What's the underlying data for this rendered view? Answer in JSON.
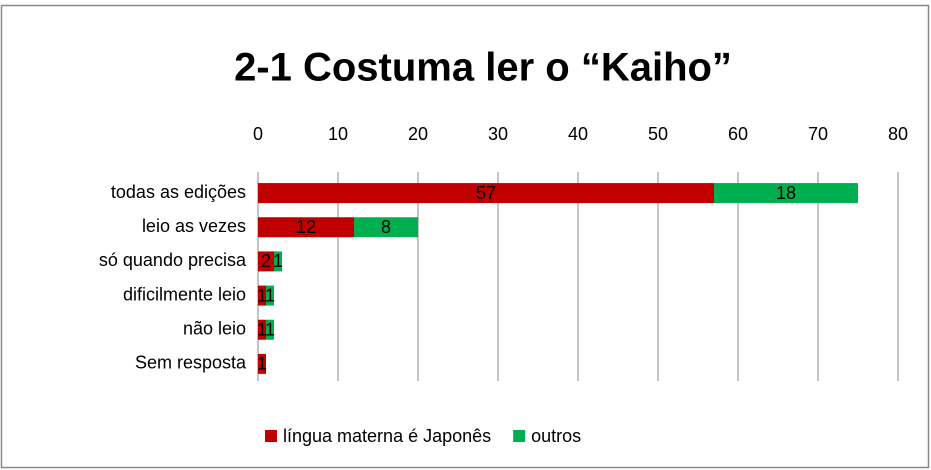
{
  "chart_data": {
    "type": "stacked_barh",
    "title": "2-1 Costuma ler o “Kaiho”",
    "categories": [
      "todas as edições",
      "leio as vezes",
      "só quando precisa",
      "dificilmente leio",
      "não leio",
      "Sem resposta"
    ],
    "series": [
      {
        "name": "língua materna é Japonês",
        "color": "#c00000",
        "values": [
          57,
          12,
          2,
          1,
          1,
          1
        ]
      },
      {
        "name": "outros",
        "color": "#00b050",
        "values": [
          18,
          8,
          1,
          1,
          1,
          null
        ]
      }
    ],
    "xlim": [
      0,
      80
    ],
    "xticks": [
      0,
      10,
      20,
      30,
      40,
      50,
      60,
      70,
      80
    ],
    "grid": true,
    "legend": "bottom"
  }
}
